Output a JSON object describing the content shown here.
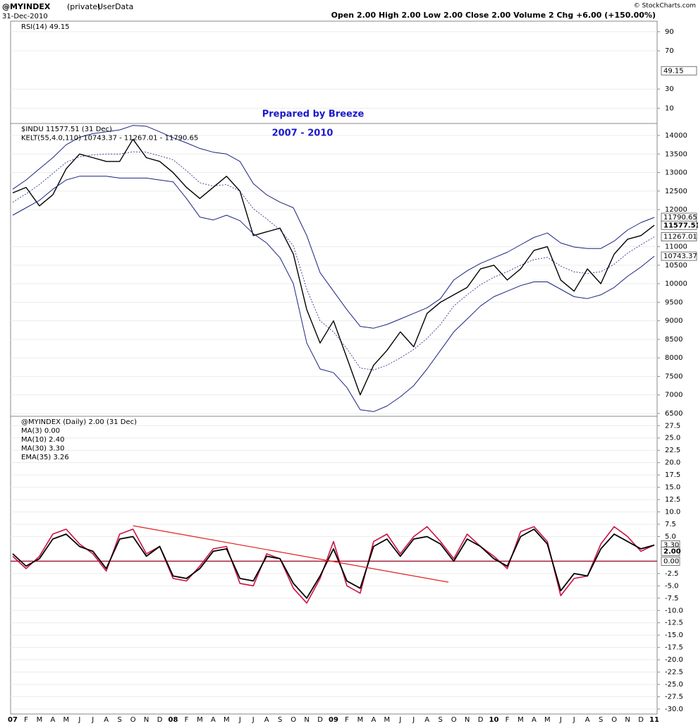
{
  "header": {
    "title": "@MYINDEX",
    "private": "(private)",
    "source": "UserData",
    "date": "31-Dec-2010",
    "quote": "Open 2.00 High 2.00 Low 2.00 Close 2.00 Volume 2 Chg +6.00 (+150.00%)",
    "credit": "© StockCharts.com"
  },
  "chart_data": [
    {
      "type": "line",
      "legend": [
        "RSI(14) 49.15"
      ],
      "legend_colors": [
        "#000000"
      ],
      "ylim": [
        -6,
        101
      ],
      "yticks": [
        10,
        30,
        70,
        90
      ],
      "tags": [
        49.15
      ],
      "series": []
    },
    {
      "type": "line",
      "legend": [
        "$INDU 11577.51 (31 Dec)",
        "KELT(55,4.0,110) 10743.37 - 11267.01 - 11790.65"
      ],
      "legend_colors": [
        "#000000",
        "#1a237e"
      ],
      "annotations": [
        "Prepared by Breeze",
        "2007 - 2010"
      ],
      "ylim": [
        6424,
        14324
      ],
      "yticks": [
        6500,
        7000,
        7500,
        8000,
        8500,
        9000,
        9500,
        10000,
        10500,
        11000,
        12000,
        12500,
        13000,
        13500,
        14000
      ],
      "tags": [
        11790.65,
        11577.51,
        11267.01,
        10743.37
      ],
      "series": [
        {
          "color": "#000000",
          "width": 1.4,
          "values": [
            12450,
            12600,
            12100,
            12400,
            13100,
            13500,
            13400,
            13300,
            13300,
            13900,
            13400,
            13300,
            13000,
            12600,
            12300,
            12600,
            12900,
            12500,
            11300,
            11400,
            11500,
            10800,
            9300,
            8400,
            9000,
            8000,
            7000,
            7800,
            8200,
            8700,
            8300,
            9200,
            9500,
            9700,
            9900,
            10400,
            10500,
            10100,
            10400,
            10900,
            11000,
            10100,
            9800,
            10400,
            10000,
            10800,
            11200,
            11300,
            11577.51
          ]
        },
        {
          "color": "#1a237e",
          "width": 1,
          "values": [
            12550,
            12800,
            13100,
            13400,
            13750,
            13950,
            14050,
            14100,
            14150,
            14270,
            14250,
            14100,
            13940,
            13800,
            13650,
            13550,
            13500,
            13300,
            12700,
            12400,
            12200,
            12050,
            11300,
            10300,
            9800,
            9300,
            8850,
            8800,
            8900,
            9050,
            9200,
            9350,
            9600,
            10100,
            10350,
            10550,
            10700,
            10850,
            11050,
            11250,
            11370,
            11100,
            10990,
            10950,
            10950,
            11150,
            11450,
            11650,
            11790.65
          ]
        },
        {
          "color": "#1a237e",
          "width": 0.8,
          "dash": "2,2",
          "values": [
            12200,
            12425,
            12675,
            12975,
            13275,
            13425,
            13475,
            13500,
            13500,
            13560,
            13550,
            13450,
            13345,
            13050,
            12725,
            12635,
            12675,
            12500,
            12025,
            11750,
            11450,
            11025,
            9850,
            9000,
            8700,
            8250,
            7725,
            7675,
            7800,
            8000,
            8225,
            8525,
            8900,
            9400,
            9700,
            9975,
            10175,
            10325,
            10500,
            10650,
            10710,
            10475,
            10320,
            10275,
            10325,
            10525,
            10825,
            11050,
            11267.01
          ]
        },
        {
          "color": "#1a237e",
          "width": 1,
          "values": [
            11850,
            12050,
            12250,
            12550,
            12800,
            12900,
            12900,
            12900,
            12850,
            12850,
            12850,
            12800,
            12750,
            12300,
            11800,
            11720,
            11850,
            11700,
            11350,
            11100,
            10700,
            10000,
            8400,
            7700,
            7600,
            7200,
            6600,
            6550,
            6700,
            6950,
            7250,
            7700,
            8200,
            8700,
            9050,
            9400,
            9650,
            9800,
            9950,
            10050,
            10050,
            9850,
            9650,
            9600,
            9700,
            9900,
            10200,
            10450,
            10743.37
          ]
        }
      ]
    },
    {
      "type": "line",
      "legend": [
        "@MYINDEX (Daily) 2.00 (31 Dec)",
        "MA(3) 0.00",
        "MA(10) 2.40",
        "MA(30) 3.30",
        "EMA(35) 3.26"
      ],
      "legend_colors": [
        "#333333",
        "#888888",
        "#006600",
        "#aa0033",
        "#000000"
      ],
      "categories": [
        "07",
        "F",
        "M",
        "A",
        "M",
        "J",
        "J",
        "A",
        "S",
        "O",
        "N",
        "D",
        "08",
        "F",
        "M",
        "A",
        "M",
        "J",
        "J",
        "A",
        "S",
        "O",
        "N",
        "D",
        "09",
        "F",
        "M",
        "A",
        "M",
        "J",
        "J",
        "A",
        "S",
        "O",
        "N",
        "D",
        "10",
        "F",
        "M",
        "A",
        "M",
        "J",
        "J",
        "A",
        "S",
        "O",
        "N",
        "D",
        "11"
      ],
      "ylim": [
        -31,
        29.4
      ],
      "yticks": [
        27.5,
        {
          "value": 25,
          "label": "25.0"
        },
        22.5,
        {
          "value": 20,
          "label": "20.0"
        },
        17.5,
        {
          "value": 15,
          "label": "15.0"
        },
        12.5,
        {
          "value": 10,
          "label": "10.0"
        },
        7.5,
        {
          "value": 5,
          "label": "5.0"
        },
        -2.5,
        {
          "value": -5,
          "label": "-5.0"
        },
        -7.5,
        {
          "value": -10,
          "label": "-10.0"
        },
        -12.5,
        {
          "value": -15,
          "label": "-15.0"
        },
        -17.5,
        {
          "value": -20,
          "label": "-20.0"
        },
        -22.5,
        {
          "value": -25,
          "label": "-25.0"
        },
        -27.5,
        {
          "value": -30,
          "label": "-30.0"
        }
      ],
      "tags": [
        {
          "value": 3.3,
          "label": "3.30"
        },
        {
          "value": 2,
          "label": "2.00"
        },
        {
          "value": 0,
          "label": "0.00"
        }
      ],
      "trendline": {
        "color": "#e02020",
        "start": {
          "index": 9,
          "value": 7.2
        },
        "end": {
          "index": 32.6,
          "value": -4.25
        }
      },
      "series": [
        {
          "color": "#cc1144",
          "width": 1.6,
          "values": [
            1.0,
            -1.5,
            1.0,
            5.5,
            6.5,
            3.5,
            1.5,
            -2.0,
            5.5,
            6.5,
            1.5,
            3.0,
            -3.5,
            -4.0,
            -1.0,
            2.5,
            3.0,
            -4.5,
            -5.0,
            1.5,
            0.5,
            -5.5,
            -8.5,
            -3.5,
            4.0,
            -5.0,
            -6.5,
            4.0,
            5.5,
            1.5,
            5.0,
            7.0,
            4.0,
            0.5,
            5.5,
            3.0,
            1.0,
            -1.5,
            6.0,
            7.0,
            4.0,
            -7.0,
            -3.5,
            -3.0,
            3.5,
            7.0,
            5.0,
            2.0,
            3.3
          ]
        },
        {
          "color": "#000000",
          "width": 1.8,
          "values": [
            1.5,
            -1.0,
            0.5,
            4.5,
            5.5,
            3.0,
            2.0,
            -1.5,
            4.5,
            5.0,
            1.0,
            3.0,
            -3.0,
            -3.5,
            -1.5,
            2.0,
            2.5,
            -3.5,
            -4.0,
            1.0,
            0.5,
            -4.5,
            -7.5,
            -3.0,
            2.5,
            -4.0,
            -5.5,
            3.0,
            4.5,
            1.0,
            4.5,
            5.0,
            3.5,
            0.0,
            4.5,
            3.0,
            0.5,
            -1.0,
            5.0,
            6.5,
            3.5,
            -6.0,
            -2.5,
            -3.0,
            2.5,
            5.5,
            4.0,
            2.5,
            3.26
          ]
        }
      ]
    }
  ]
}
